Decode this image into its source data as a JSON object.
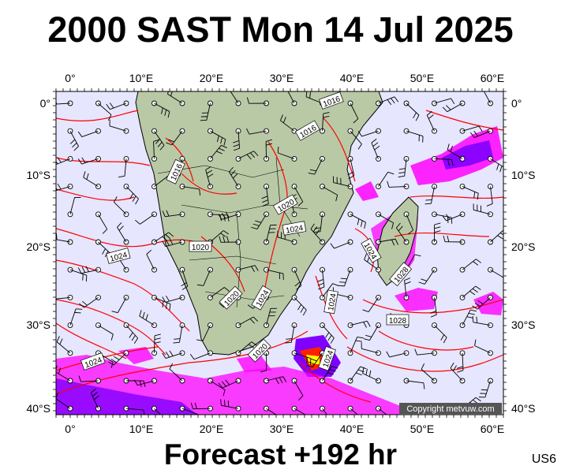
{
  "title": "2000 SAST Mon 14 Jul 2025",
  "footer": "Forecast +192 hr",
  "code": "US6",
  "copyright": "Copyright metvuw.com",
  "lon_labels": [
    "0°",
    "10°E",
    "20°E",
    "30°E",
    "40°E",
    "50°E",
    "60°E"
  ],
  "lat_labels": [
    "0°",
    "10°S",
    "20°S",
    "30°S",
    "40°S"
  ],
  "isobar_labels": [
    "1016",
    "1016",
    "1016",
    "1020",
    "1024",
    "1020",
    "1024",
    "1020",
    "1024",
    "1024",
    "1020",
    "1024",
    "1028",
    "1024",
    "1028",
    "1024"
  ],
  "colors": {
    "ocean": "#e6e6ff",
    "land": "#b9c9a6",
    "isobar": "#ff0000",
    "border": "#000000",
    "precip_light": "#ff00ff",
    "precip_mid": "#8000ff",
    "precip_heavy": "#ff2000"
  }
}
